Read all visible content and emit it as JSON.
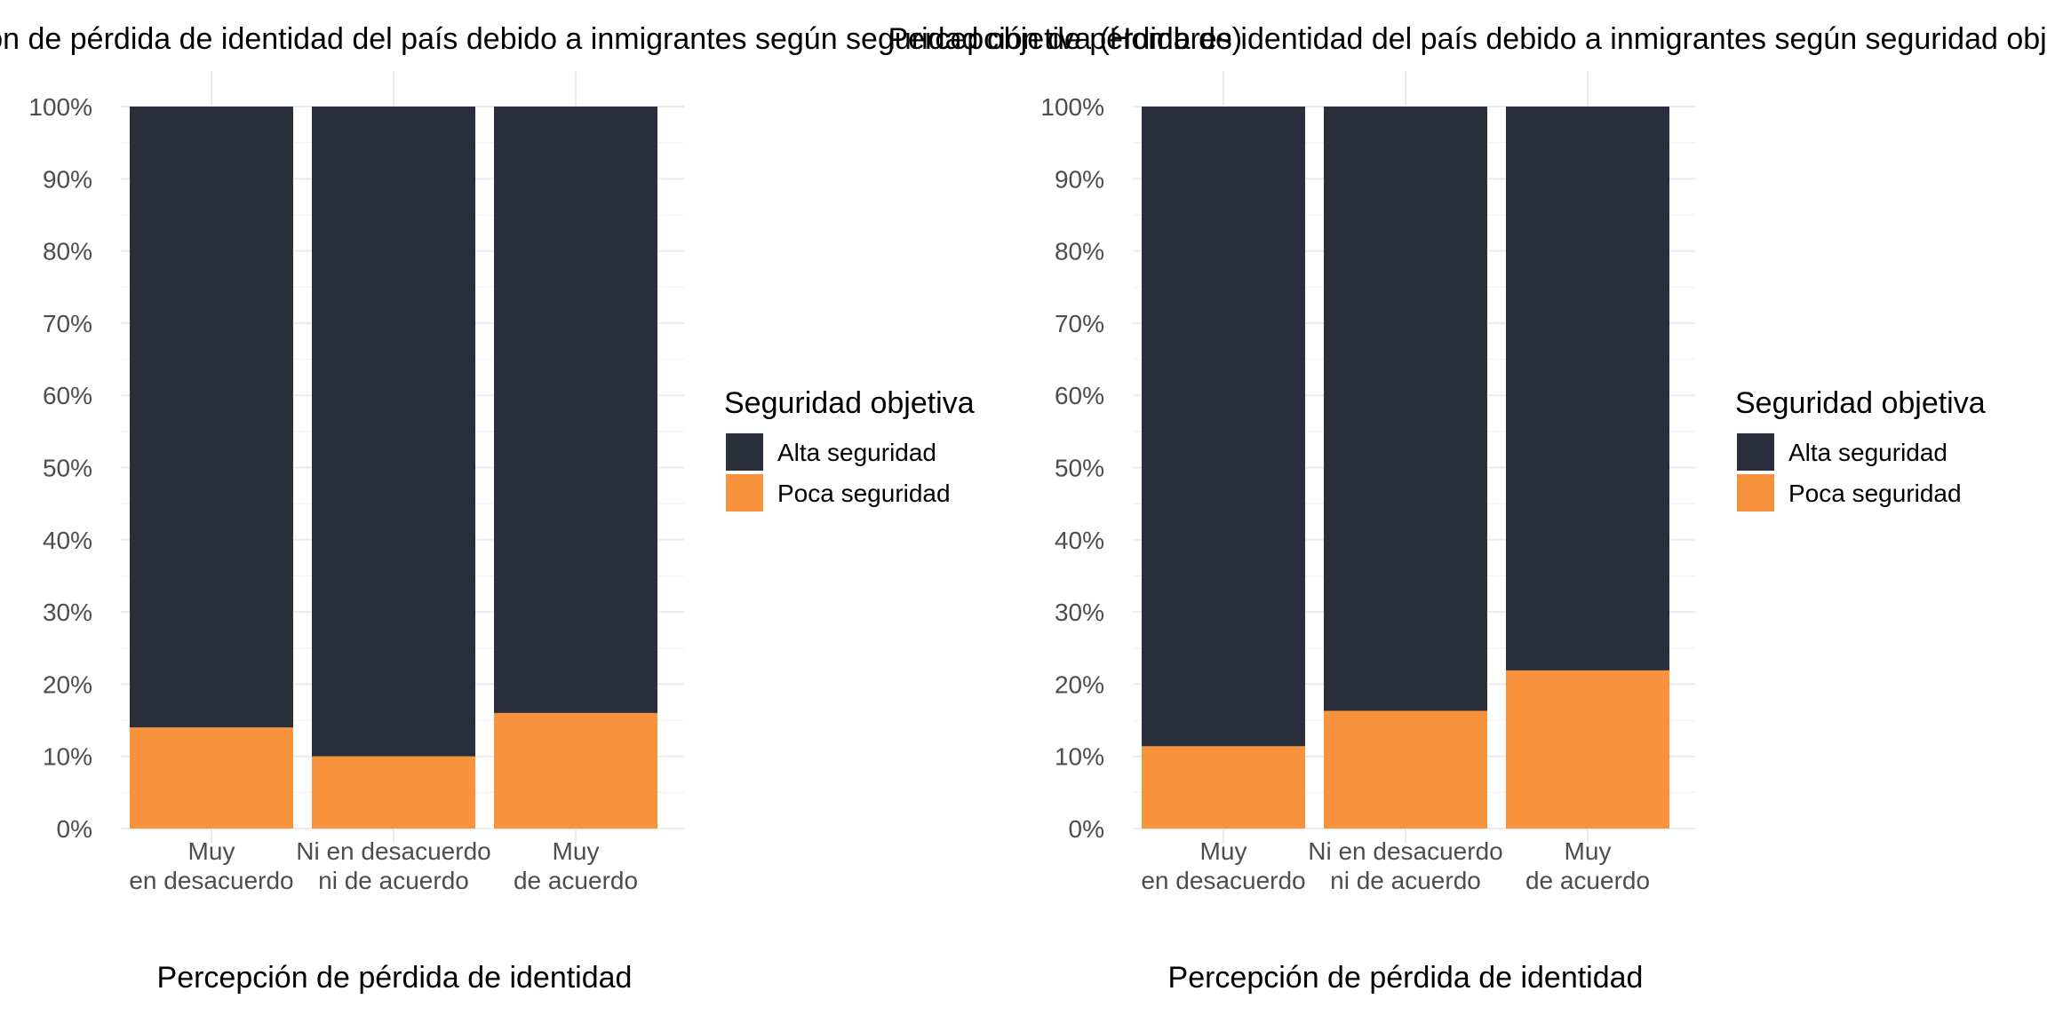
{
  "chart_data": [
    {
      "type": "bar",
      "stacked": true,
      "title": "Percepción de pérdida de identidad del país debido a inmigrantes según seguridad objetiva (Hombres)",
      "xlabel": "Percepción de pérdida de identidad",
      "ylabel": "",
      "categories": [
        [
          "Muy",
          "en desacuerdo"
        ],
        [
          "Ni en desacuerdo",
          "ni de acuerdo"
        ],
        [
          "Muy",
          "de acuerdo"
        ]
      ],
      "series": [
        {
          "name": "Poca seguridad",
          "color": "#f9923c",
          "values": [
            0.14,
            0.1,
            0.16
          ]
        },
        {
          "name": "Alta seguridad",
          "color": "#2b2f3c",
          "values": [
            0.86,
            0.9,
            0.84
          ]
        }
      ],
      "ylim": [
        0,
        1
      ],
      "yticks": [
        "0%",
        "10%",
        "20%",
        "30%",
        "40%",
        "50%",
        "60%",
        "70%",
        "80%",
        "90%",
        "100%"
      ],
      "grid": true,
      "legend": {
        "title": "Seguridad objetiva",
        "position": "right",
        "entries": [
          {
            "label": "Alta seguridad",
            "color": "#2b2f3c"
          },
          {
            "label": "Poca seguridad",
            "color": "#f9923c"
          }
        ]
      }
    },
    {
      "type": "bar",
      "stacked": true,
      "title": "Percepción de pérdida de identidad del país debido a inmigrantes según seguridad objetiva (Mujeres)",
      "xlabel": "Percepción de pérdida de identidad",
      "ylabel": "",
      "categories": [
        [
          "Muy",
          "en desacuerdo"
        ],
        [
          "Ni en desacuerdo",
          "ni de acuerdo"
        ],
        [
          "Muy",
          "de acuerdo"
        ]
      ],
      "series": [
        {
          "name": "Poca seguridad",
          "color": "#f9923c",
          "values": [
            0.114,
            0.163,
            0.219
          ]
        },
        {
          "name": "Alta seguridad",
          "color": "#2b2f3c",
          "values": [
            0.886,
            0.837,
            0.781
          ]
        }
      ],
      "ylim": [
        0,
        1
      ],
      "yticks": [
        "0%",
        "10%",
        "20%",
        "30%",
        "40%",
        "50%",
        "60%",
        "70%",
        "80%",
        "90%",
        "100%"
      ],
      "grid": true,
      "legend": {
        "title": "Seguridad objetiva",
        "position": "right",
        "entries": [
          {
            "label": "Alta seguridad",
            "color": "#2b2f3c"
          },
          {
            "label": "Poca seguridad",
            "color": "#f9923c"
          }
        ]
      }
    }
  ]
}
